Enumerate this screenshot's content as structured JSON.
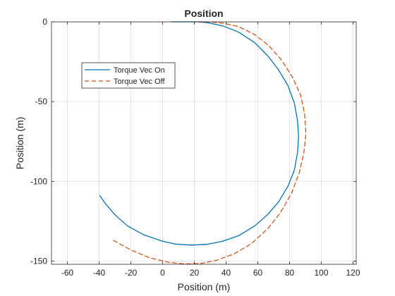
{
  "chart_data": {
    "type": "line",
    "title": "Position",
    "xlabel": "Position (m)",
    "ylabel": "Position (m)",
    "xlim": [
      -70,
      122
    ],
    "ylim": [
      -152,
      0
    ],
    "xticks": [
      -60,
      -40,
      -20,
      0,
      20,
      40,
      60,
      80,
      100,
      120
    ],
    "yticks": [
      -150,
      -100,
      -50,
      0
    ],
    "grid": true,
    "legend_position": "upper-left",
    "series": [
      {
        "name": "Torque Vec On",
        "color": "#0072BD",
        "style": "solid",
        "points": [
          [
            -39.5,
            -109
          ],
          [
            -36,
            -114
          ],
          [
            -30,
            -121
          ],
          [
            -22,
            -128
          ],
          [
            -12,
            -133.5
          ],
          [
            0,
            -137.5
          ],
          [
            8,
            -139.3
          ],
          [
            18,
            -140
          ],
          [
            28,
            -139.5
          ],
          [
            38,
            -137.5
          ],
          [
            48,
            -134
          ],
          [
            58,
            -128
          ],
          [
            66,
            -121
          ],
          [
            73,
            -113
          ],
          [
            79,
            -103
          ],
          [
            83,
            -93
          ],
          [
            85,
            -82
          ],
          [
            85.7,
            -72
          ],
          [
            85,
            -62
          ],
          [
            83,
            -51
          ],
          [
            79,
            -40
          ],
          [
            73,
            -30
          ],
          [
            66,
            -21
          ],
          [
            58,
            -13
          ],
          [
            48,
            -6.5
          ],
          [
            38,
            -2.5
          ],
          [
            28,
            -0.5
          ],
          [
            22,
            0
          ],
          [
            18,
            0
          ],
          [
            14,
            0
          ],
          [
            10,
            0
          ],
          [
            5.5,
            0
          ]
        ]
      },
      {
        "name": "Torque Vec Off",
        "color": "#D95319",
        "style": "dashed",
        "points": [
          [
            -31,
            -137
          ],
          [
            -20,
            -143
          ],
          [
            -8,
            -148
          ],
          [
            4,
            -150.8
          ],
          [
            14,
            -151.8
          ],
          [
            24,
            -151.5
          ],
          [
            34,
            -149.5
          ],
          [
            45,
            -145.5
          ],
          [
            56,
            -139
          ],
          [
            66,
            -130
          ],
          [
            74,
            -120
          ],
          [
            81,
            -108
          ],
          [
            86,
            -95
          ],
          [
            89,
            -82
          ],
          [
            90.3,
            -70
          ],
          [
            89.5,
            -58
          ],
          [
            87,
            -46
          ],
          [
            82,
            -35
          ],
          [
            75,
            -24
          ],
          [
            67,
            -15
          ],
          [
            58,
            -8
          ],
          [
            48,
            -3
          ],
          [
            38,
            -0.8
          ],
          [
            28,
            0
          ],
          [
            20,
            0
          ]
        ]
      }
    ]
  }
}
